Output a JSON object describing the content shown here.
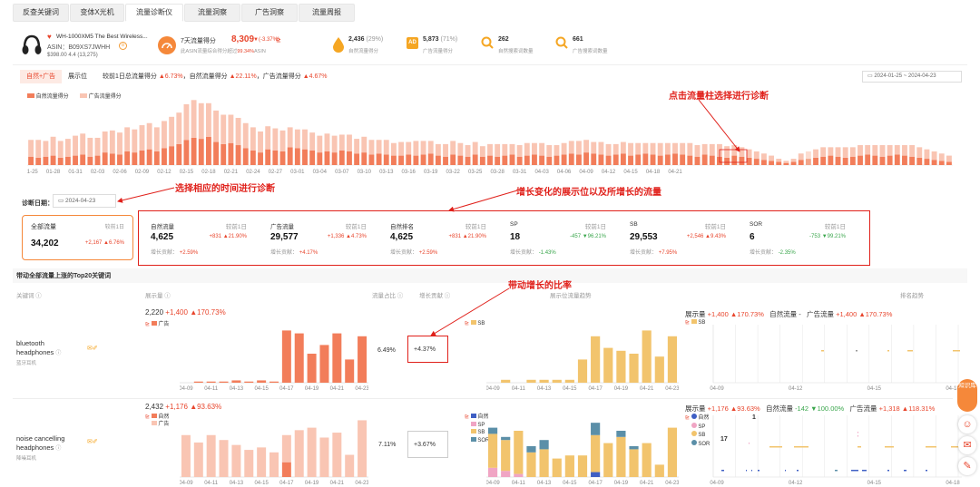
{
  "tabs": [
    "反查关键词",
    "变体X光机",
    "流量诊断仪",
    "流量洞察",
    "广告洞察",
    "流量周报"
  ],
  "product": {
    "title": "WH-1000XM5 The Best Wireless...",
    "asin": "ASIN：B09XS7JWHH",
    "price_rating": "$398.00  4.4  (13,275)",
    "score_label": "7天流量得分",
    "score_value": "8,309",
    "score_change": "(-3.37%)",
    "score_sub_prefix": "此ASIN流量综合得分超过",
    "score_sub_pct": "99.34%",
    "score_sub_suffix": "ASIN",
    "stats": [
      {
        "value": "2,436",
        "pct": "(29%)",
        "label": "自然流量得分"
      },
      {
        "value": "5,873",
        "pct": "(71%)",
        "label": "广告流量得分"
      },
      {
        "value": "262",
        "pct": "",
        "label": "自然搜索词数量"
      },
      {
        "value": "661",
        "pct": "",
        "label": "广告搜索词数量"
      }
    ]
  },
  "subtabs": [
    "自然+广告",
    "展示位"
  ],
  "summary": {
    "lead": "较前1日总流量得分",
    "total_chg": "6.73%",
    "nat_label": "，自然流量得分",
    "nat_chg": "22.11%",
    "ad_label": "，广告流量得分",
    "ad_chg": "4.67%"
  },
  "date_range": {
    "start": "2024-01-25",
    "sep": "~",
    "end": "2024-04-23"
  },
  "main_chart": {
    "legend": [
      "自然流量得分",
      "广告流量得分"
    ],
    "colors": {
      "natural": "#f27d5a",
      "ad": "#f9c5b3",
      "selected_natural": "#f2a58a",
      "selected_ad": "#fcdcd0"
    },
    "ticks": [
      "01-25",
      "01-28",
      "01-31",
      "02-03",
      "02-06",
      "02-09",
      "02-12",
      "02-15",
      "02-18",
      "02-21",
      "02-24",
      "02-27",
      "03-01",
      "03-04",
      "03-07",
      "03-10",
      "03-13",
      "03-16",
      "03-19",
      "03-22",
      "03-25",
      "03-28",
      "03-31",
      "04-03",
      "04-06",
      "04-09",
      "04-12",
      "04-15",
      "04-18",
      "04-21"
    ]
  },
  "diagnosis": {
    "label": "诊断日期：",
    "date": "2024-04-23"
  },
  "total_card": {
    "title": "全部流量",
    "compare": "较前1日",
    "value": "34,202",
    "delta": "+2,167",
    "delta_pct": "6.76%"
  },
  "cards": [
    {
      "title": "自然流量",
      "compare": "较前1日",
      "value": "4,625",
      "delta": "+831",
      "delta_pct": "21.90%",
      "dir": "up",
      "contrib_label": "增长贡献：",
      "contrib": "+2.59%"
    },
    {
      "title": "广告流量",
      "compare": "较前1日",
      "value": "29,577",
      "delta": "+1,336",
      "delta_pct": "4.73%",
      "dir": "up",
      "contrib_label": "增长贡献：",
      "contrib": "+4.17%"
    },
    {
      "title": "自然排名",
      "compare": "较前1日",
      "value": "4,625",
      "delta": "+831",
      "delta_pct": "21.90%",
      "dir": "up",
      "contrib_label": "增长贡献：",
      "contrib": "+2.59%"
    },
    {
      "title": "SP",
      "compare": "较前1日",
      "value": "18",
      "delta": "-457",
      "delta_pct": "96.21%",
      "dir": "down",
      "contrib_label": "增长贡献：",
      "contrib": "-1.43%"
    },
    {
      "title": "SB",
      "compare": "较前1日",
      "value": "29,553",
      "delta": "+2,546",
      "delta_pct": "9.43%",
      "dir": "up",
      "contrib_label": "增长贡献：",
      "contrib": "+7.95%"
    },
    {
      "title": "SOR",
      "compare": "较前1日",
      "value": "6",
      "delta": "-753",
      "delta_pct": "99.21%",
      "dir": "down",
      "contrib_label": "增长贡献：",
      "contrib": "-2.35%"
    }
  ],
  "section_title": "带动全部流量上涨的Top20关键词",
  "table_headers": {
    "keyword": "关键词",
    "impressions": "展示量",
    "share": "流量占比",
    "contrib": "增长贡献",
    "placement": "展示位流量趋势",
    "rank": "排名趋势"
  },
  "day_ticks": [
    "04-09",
    "04-11",
    "04-13",
    "04-15",
    "04-17",
    "04-19",
    "04-21",
    "04-23"
  ],
  "rank_ticks_row1": [
    "04-09",
    "04-12",
    "04-15",
    "04-18"
  ],
  "rank_ticks_row2": [
    "04-09",
    "04-12",
    "04-15",
    "04-18"
  ],
  "rows": [
    {
      "keyword_en": "bluetooth headphones",
      "keyword_cn": "蓝牙耳机",
      "imp_value": "2,220",
      "imp_delta": "+1,400",
      "imp_pct": "170.73%",
      "imp_legend": [
        "广告"
      ],
      "share": "6.49%",
      "contrib": "+4.37%",
      "placement_legend": [
        "SB"
      ],
      "rank_header": {
        "imp_label": "展示量",
        "imp_delta": "+1,400",
        "imp_pct": "170.73%",
        "nat_label": "自然流量",
        "nat_value": "-",
        "ad_label": "广告流量",
        "ad_delta": "+1,400",
        "ad_pct": "170.73%"
      },
      "rank_legend": [
        "SB"
      ],
      "rank_label": ""
    },
    {
      "keyword_en": "noise cancelling headphones",
      "keyword_cn": "降噪耳机",
      "imp_value": "2,432",
      "imp_delta": "+1,176",
      "imp_pct": "93.63%",
      "imp_legend": [
        "自然",
        "广告"
      ],
      "share": "7.11%",
      "contrib": "+3.67%",
      "placement_legend": [
        "自然",
        "SP",
        "SB",
        "SOR"
      ],
      "rank_header": {
        "imp_label": "展示量",
        "imp_delta": "+1,176",
        "imp_pct": "93.63%",
        "nat_label": "自然流量",
        "nat_delta": "-142",
        "nat_pct": "100.00%",
        "ad_label": "广告流量",
        "ad_delta": "+1,318",
        "ad_pct": "118.31%"
      },
      "rank_legend": [
        "自然",
        "SP",
        "SB",
        "SOR"
      ],
      "rank_label": "1",
      "rank_label2": "17"
    }
  ],
  "annotations": [
    "点击流量柱选择进行诊断",
    "选择相应的时间进行诊断",
    "增长变化的展示位以及所增长的流量",
    "带动增长的比率"
  ],
  "side_buttons": [
    "知识库"
  ],
  "chart_data": [
    {
      "type": "bar",
      "title": "",
      "series": [
        {
          "name": "自然流量得分",
          "values": [
            8,
            7,
            8,
            9,
            7,
            8,
            9,
            10,
            8,
            9,
            12,
            11,
            10,
            13,
            12,
            14,
            15,
            13,
            16,
            18,
            20,
            24,
            26,
            25,
            27,
            22,
            20,
            21,
            19,
            16,
            14,
            12,
            15,
            14,
            13,
            17,
            16,
            15,
            14,
            12,
            13,
            12,
            14,
            13,
            11,
            12,
            10,
            11,
            10,
            9,
            9,
            10,
            9,
            10,
            11,
            9,
            8,
            10,
            9,
            8,
            10,
            8,
            9,
            8,
            9,
            10,
            8,
            9,
            10,
            9,
            8,
            9,
            10,
            11,
            10,
            12,
            11,
            10,
            9,
            10,
            11,
            9,
            10,
            11,
            10,
            9,
            10,
            11,
            10,
            9,
            8,
            10,
            9,
            8,
            7,
            9,
            8,
            7,
            6,
            5,
            4,
            3,
            2,
            3,
            5,
            6,
            7,
            8,
            9,
            8,
            7,
            8,
            9,
            10,
            9,
            8,
            9,
            10,
            9,
            8,
            7,
            6,
            5,
            4,
            3
          ]
        },
        {
          "name": "广告流量得分",
          "values": [
            16,
            17,
            15,
            18,
            16,
            17,
            19,
            20,
            18,
            17,
            20,
            22,
            21,
            23,
            22,
            24,
            25,
            23,
            26,
            28,
            30,
            34,
            36,
            34,
            32,
            30,
            28,
            27,
            26,
            24,
            22,
            20,
            22,
            21,
            20,
            19,
            18,
            19,
            17,
            16,
            17,
            16,
            15,
            16,
            14,
            15,
            14,
            13,
            14,
            12,
            13,
            12,
            14,
            13,
            12,
            11,
            12,
            13,
            12,
            11,
            12,
            10,
            11,
            12,
            11,
            10,
            11,
            12,
            11,
            12,
            11,
            10,
            11,
            12,
            13,
            12,
            11,
            12,
            11,
            10,
            11,
            12,
            11,
            10,
            11,
            12,
            11,
            10,
            11,
            12,
            11,
            10,
            11,
            12,
            11,
            10,
            9,
            8,
            7,
            6,
            5,
            3,
            2,
            3,
            6,
            7,
            8,
            9,
            8,
            9,
            10,
            9,
            10,
            9,
            10,
            11,
            10,
            9,
            10,
            11,
            10,
            9,
            8,
            7,
            6
          ]
        }
      ],
      "xlabel": "",
      "ylabel": ""
    },
    {
      "type": "bar",
      "title": "bluetooth headphones 展示量",
      "categories": [
        "04-09",
        "04-10",
        "04-11",
        "04-12",
        "04-13",
        "04-14",
        "04-15",
        "04-16",
        "04-17",
        "04-18",
        "04-19",
        "04-20",
        "04-21",
        "04-22",
        "04-23"
      ],
      "series": [
        {
          "name": "广告",
          "values": [
            0,
            40,
            40,
            40,
            80,
            40,
            80,
            40,
            1800,
            1700,
            1000,
            1300,
            1700,
            800,
            1600
          ]
        }
      ],
      "ylim": [
        0,
        2000
      ]
    },
    {
      "type": "bar",
      "title": "bluetooth headphones 展示位流量趋势",
      "categories": [
        "04-09",
        "04-10",
        "04-11",
        "04-12",
        "04-13",
        "04-14",
        "04-15",
        "04-16",
        "04-17",
        "04-18",
        "04-19",
        "04-20",
        "04-21",
        "04-22",
        "04-23"
      ],
      "series": [
        {
          "name": "SB",
          "values": [
            0,
            5,
            0,
            5,
            5,
            5,
            5,
            40,
            80,
            60,
            55,
            50,
            90,
            45,
            80
          ]
        }
      ],
      "ylim": [
        0,
        100
      ]
    },
    {
      "type": "bar",
      "title": "noise cancelling headphones 展示量",
      "categories": [
        "04-09",
        "04-10",
        "04-11",
        "04-12",
        "04-13",
        "04-14",
        "04-15",
        "04-16",
        "04-17",
        "04-18",
        "04-19",
        "04-20",
        "04-21",
        "04-22",
        "04-23"
      ],
      "series": [
        {
          "name": "自然",
          "values": [
            0,
            0,
            0,
            0,
            0,
            0,
            0,
            0,
            600,
            0,
            0,
            0,
            0,
            0,
            0
          ]
        },
        {
          "name": "广告",
          "values": [
            1700,
            1400,
            1700,
            1500,
            1300,
            1100,
            1200,
            1000,
            1100,
            1900,
            2000,
            1600,
            1800,
            900,
            2300
          ]
        }
      ],
      "ylim": [
        0,
        2500
      ]
    },
    {
      "type": "bar",
      "title": "noise cancelling headphones 展示位流量趋势",
      "categories": [
        "04-09",
        "04-10",
        "04-11",
        "04-12",
        "04-13",
        "04-14",
        "04-15",
        "04-16",
        "04-17",
        "04-18",
        "04-19",
        "04-20",
        "04-21",
        "04-22",
        "04-23"
      ],
      "series": [
        {
          "name": "自然",
          "values": [
            0,
            0,
            0,
            0,
            0,
            0,
            0,
            0,
            8,
            0,
            0,
            0,
            0,
            0,
            0
          ]
        },
        {
          "name": "SP",
          "values": [
            15,
            10,
            5,
            0,
            0,
            0,
            0,
            0,
            0,
            0,
            0,
            0,
            0,
            0,
            0
          ]
        },
        {
          "name": "SB",
          "values": [
            55,
            50,
            70,
            40,
            45,
            30,
            35,
            35,
            60,
            55,
            65,
            45,
            55,
            20,
            80
          ]
        },
        {
          "name": "SOR",
          "values": [
            10,
            5,
            0,
            10,
            15,
            0,
            0,
            0,
            20,
            0,
            10,
            5,
            0,
            0,
            0
          ]
        }
      ],
      "ylim": [
        0,
        100
      ]
    }
  ]
}
